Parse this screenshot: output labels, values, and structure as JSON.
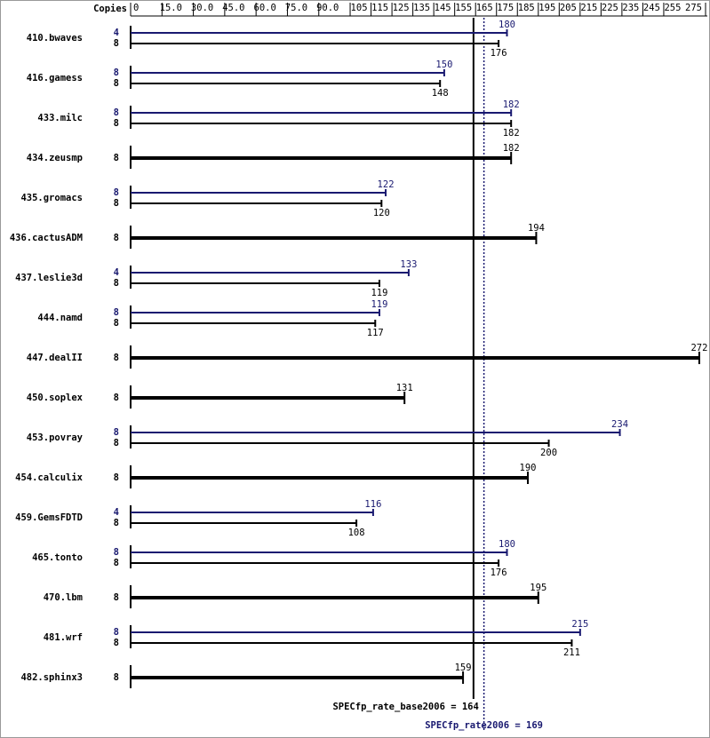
{
  "chart_data": {
    "type": "bar",
    "copies_label": "Copies",
    "categories": [
      "410.bwaves",
      "416.gamess",
      "433.milc",
      "434.zeusmp",
      "435.gromacs",
      "436.cactusADM",
      "437.leslie3d",
      "444.namd",
      "447.dealII",
      "450.soplex",
      "453.povray",
      "454.calculix",
      "459.GemsFDTD",
      "465.tonto",
      "470.lbm",
      "481.wrf",
      "482.sphinx3"
    ],
    "series": [
      {
        "color": "#191970",
        "copies": [
          4,
          8,
          8,
          null,
          8,
          null,
          4,
          8,
          null,
          null,
          8,
          null,
          4,
          8,
          null,
          8,
          null
        ],
        "values": [
          180,
          150,
          182,
          null,
          122,
          null,
          133,
          119,
          null,
          null,
          234,
          null,
          116,
          180,
          null,
          215,
          null
        ]
      },
      {
        "color": "#000000",
        "copies": [
          8,
          8,
          8,
          8,
          8,
          8,
          8,
          8,
          8,
          8,
          8,
          8,
          8,
          8,
          8,
          8,
          8
        ],
        "values": [
          176,
          148,
          182,
          182,
          120,
          194,
          119,
          117,
          272,
          131,
          200,
          190,
          108,
          176,
          195,
          211,
          159
        ]
      }
    ],
    "xlim": [
      0,
      275
    ],
    "xticks": [
      0,
      {
        "value": 15,
        "label": "15.0"
      },
      {
        "value": 30,
        "label": "30.0"
      },
      {
        "value": 45,
        "label": "45.0"
      },
      {
        "value": 60,
        "label": "60.0"
      },
      {
        "value": 75,
        "label": "75.0"
      },
      {
        "value": 90,
        "label": "90.0"
      },
      105,
      115,
      125,
      135,
      145,
      155,
      165,
      175,
      185,
      195,
      205,
      215,
      225,
      235,
      245,
      255,
      275
    ],
    "reference_lines": [
      {
        "label": "SPECfp_rate_base2006 = 164",
        "value": 164,
        "color": "#000000",
        "dotted": false
      },
      {
        "label": "SPECfp_rate2006 = 169",
        "value": 169,
        "color": "#191970",
        "dotted": true
      }
    ]
  }
}
